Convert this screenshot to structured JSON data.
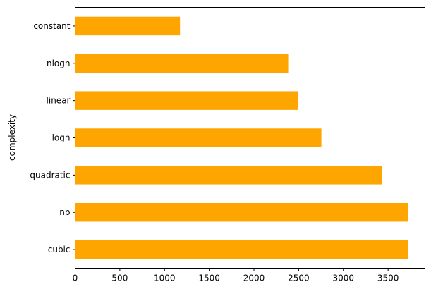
{
  "chart_data": {
    "type": "bar",
    "orientation": "horizontal",
    "categories": [
      "cubic",
      "np",
      "quadratic",
      "logn",
      "linear",
      "nlogn",
      "constant"
    ],
    "values": [
      3727,
      3727,
      3434,
      2754,
      2493,
      2383,
      1173
    ],
    "title": "",
    "xlabel": "",
    "ylabel": "complexity",
    "xlim": [
      0,
      3913
    ],
    "xticks": [
      0,
      500,
      1000,
      1500,
      2000,
      2500,
      3000,
      3500
    ],
    "grid": false,
    "bar_color": "#ffa500"
  }
}
